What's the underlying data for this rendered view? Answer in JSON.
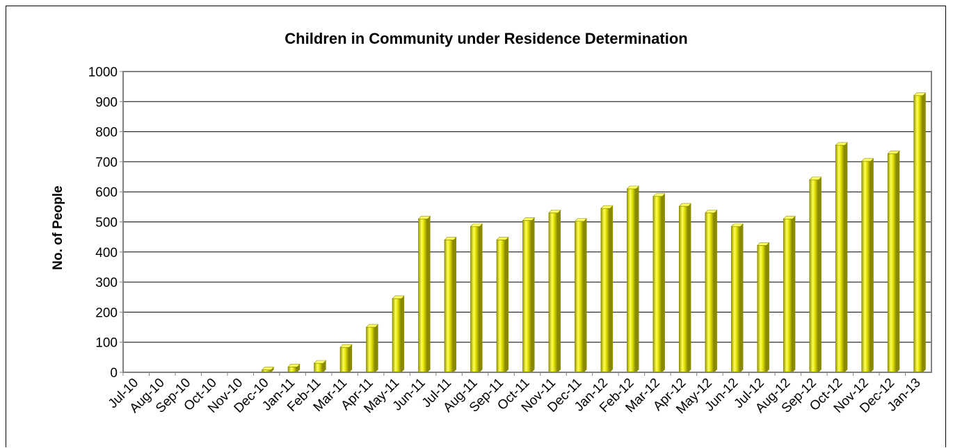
{
  "chart_data": {
    "type": "bar",
    "title": "Children in Community under Residence Determination",
    "xlabel": "",
    "ylabel": "No. of People",
    "ylim": [
      0,
      1000
    ],
    "yticks": [
      0,
      100,
      200,
      300,
      400,
      500,
      600,
      700,
      800,
      900,
      1000
    ],
    "grid": true,
    "legend": "none",
    "categories": [
      "Jul-10",
      "Aug-10",
      "Sep-10",
      "Oct-10",
      "Nov-10",
      "Dec-10",
      "Jan-11",
      "Feb-11",
      "Mar-11",
      "Apr-11",
      "May-11",
      "Jun-11",
      "Jul-11",
      "Aug-11",
      "Sep-11",
      "Oct-11",
      "Nov-11",
      "Dec-11",
      "Jan-12",
      "Feb-12",
      "Mar-12",
      "Apr-12",
      "May-12",
      "Jun-12",
      "Jul-12",
      "Aug-12",
      "Sep-12",
      "Oct-12",
      "Nov-12",
      "Dec-12",
      "Jan-13"
    ],
    "values": [
      0,
      0,
      0,
      0,
      0,
      8,
      18,
      30,
      83,
      150,
      245,
      510,
      440,
      485,
      440,
      505,
      530,
      502,
      545,
      610,
      585,
      552,
      530,
      485,
      422,
      510,
      640,
      755,
      702,
      727,
      920
    ],
    "colors": {
      "bar_fill": "#e6e600",
      "bar_dark": "#8a8a00",
      "bar_light": "#ffff66",
      "plot_border": "#808080",
      "grid": "#000000"
    }
  }
}
